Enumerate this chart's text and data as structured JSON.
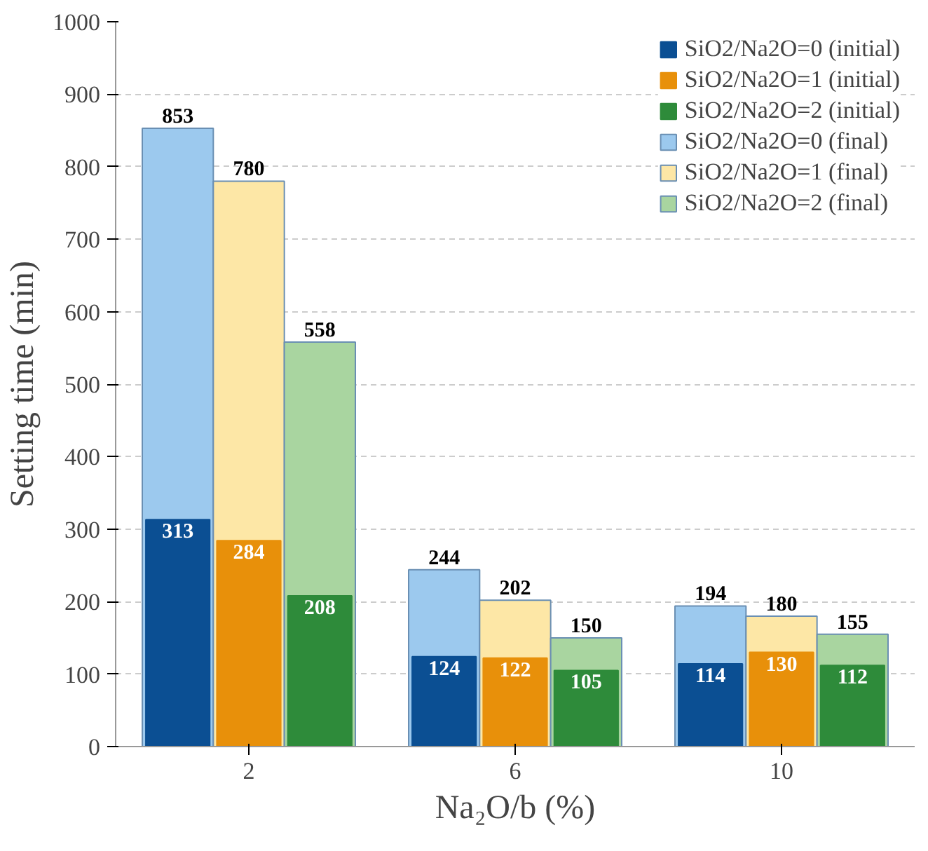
{
  "chart_data": {
    "type": "bar",
    "xlabel": "Na₂O/b (%)",
    "ylabel": "Setting time (min)",
    "categories": [
      "2",
      "6",
      "10"
    ],
    "ylim": [
      0,
      1000
    ],
    "yticks": [
      0,
      100,
      200,
      300,
      400,
      500,
      600,
      700,
      800,
      900,
      1000
    ],
    "grid": "y",
    "legend": "top right",
    "data_labels": true,
    "series": [
      {
        "name": "SiO2/Na2O=0 (initial)",
        "color": "#0b4f93",
        "values": [
          313,
          124,
          114
        ]
      },
      {
        "name": "SiO2/Na2O=1 (initial)",
        "color": "#e8900a",
        "values": [
          284,
          122,
          130
        ]
      },
      {
        "name": "SiO2/Na2O=2 (initial)",
        "color": "#2e8b3a",
        "values": [
          208,
          105,
          112
        ]
      },
      {
        "name": "SiO2/Na2O=0 (final)",
        "color": "#9cc9ee",
        "values": [
          853,
          244,
          194
        ]
      },
      {
        "name": "SiO2/Na2O=1 (final)",
        "color": "#fde7a6",
        "values": [
          780,
          202,
          180
        ]
      },
      {
        "name": "SiO2/Na2O=2 (final)",
        "color": "#a9d5a0",
        "values": [
          558,
          150,
          155
        ]
      }
    ]
  }
}
